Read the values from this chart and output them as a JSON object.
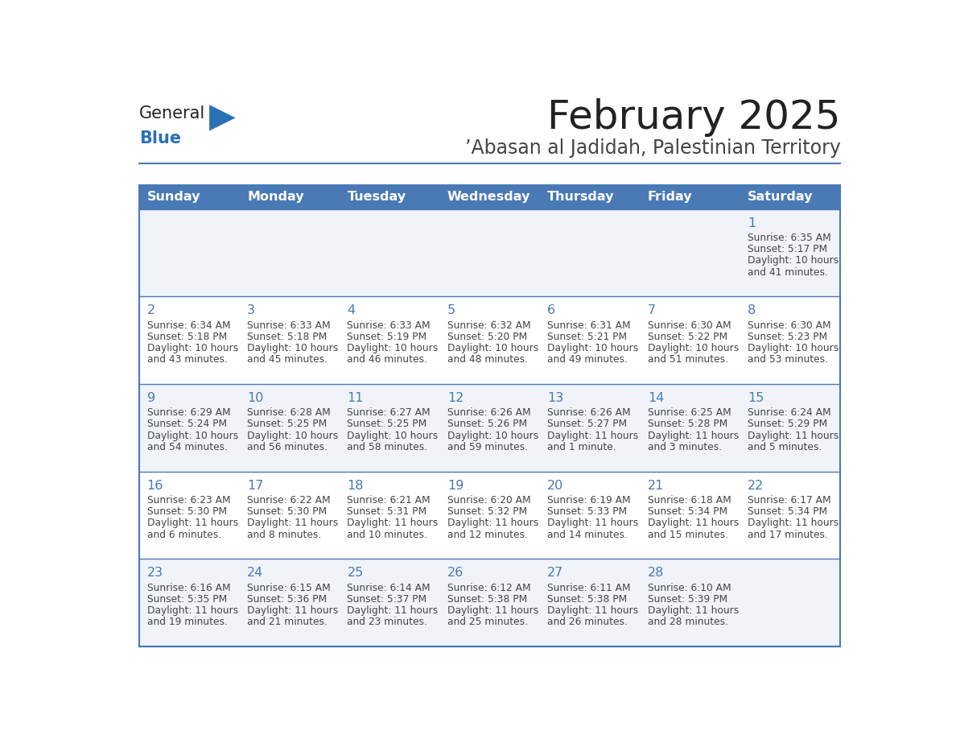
{
  "title": "February 2025",
  "subtitle": "’Abasan al Jadidah, Palestinian Territory",
  "days_of_week": [
    "Sunday",
    "Monday",
    "Tuesday",
    "Wednesday",
    "Thursday",
    "Friday",
    "Saturday"
  ],
  "header_bg": "#4a7ab5",
  "header_text": "#ffffff",
  "cell_bg_odd": "#f0f4f8",
  "cell_bg_even": "#ffffff",
  "border_color": "#4a7ab5",
  "day_number_color": "#4a7ab5",
  "text_color": "#444444",
  "title_color": "#222222",
  "subtitle_color": "#444444",
  "logo_general_color": "#222222",
  "logo_blue_color": "#2a72b5",
  "calendar_data": [
    [
      null,
      null,
      null,
      null,
      null,
      null,
      {
        "day": 1,
        "sunrise": "6:35 AM",
        "sunset": "5:17 PM",
        "daylight": "10 hours and 41 minutes."
      }
    ],
    [
      {
        "day": 2,
        "sunrise": "6:34 AM",
        "sunset": "5:18 PM",
        "daylight": "10 hours and 43 minutes."
      },
      {
        "day": 3,
        "sunrise": "6:33 AM",
        "sunset": "5:18 PM",
        "daylight": "10 hours and 45 minutes."
      },
      {
        "day": 4,
        "sunrise": "6:33 AM",
        "sunset": "5:19 PM",
        "daylight": "10 hours and 46 minutes."
      },
      {
        "day": 5,
        "sunrise": "6:32 AM",
        "sunset": "5:20 PM",
        "daylight": "10 hours and 48 minutes."
      },
      {
        "day": 6,
        "sunrise": "6:31 AM",
        "sunset": "5:21 PM",
        "daylight": "10 hours and 49 minutes."
      },
      {
        "day": 7,
        "sunrise": "6:30 AM",
        "sunset": "5:22 PM",
        "daylight": "10 hours and 51 minutes."
      },
      {
        "day": 8,
        "sunrise": "6:30 AM",
        "sunset": "5:23 PM",
        "daylight": "10 hours and 53 minutes."
      }
    ],
    [
      {
        "day": 9,
        "sunrise": "6:29 AM",
        "sunset": "5:24 PM",
        "daylight": "10 hours and 54 minutes."
      },
      {
        "day": 10,
        "sunrise": "6:28 AM",
        "sunset": "5:25 PM",
        "daylight": "10 hours and 56 minutes."
      },
      {
        "day": 11,
        "sunrise": "6:27 AM",
        "sunset": "5:25 PM",
        "daylight": "10 hours and 58 minutes."
      },
      {
        "day": 12,
        "sunrise": "6:26 AM",
        "sunset": "5:26 PM",
        "daylight": "10 hours and 59 minutes."
      },
      {
        "day": 13,
        "sunrise": "6:26 AM",
        "sunset": "5:27 PM",
        "daylight": "11 hours and 1 minute."
      },
      {
        "day": 14,
        "sunrise": "6:25 AM",
        "sunset": "5:28 PM",
        "daylight": "11 hours and 3 minutes."
      },
      {
        "day": 15,
        "sunrise": "6:24 AM",
        "sunset": "5:29 PM",
        "daylight": "11 hours and 5 minutes."
      }
    ],
    [
      {
        "day": 16,
        "sunrise": "6:23 AM",
        "sunset": "5:30 PM",
        "daylight": "11 hours and 6 minutes."
      },
      {
        "day": 17,
        "sunrise": "6:22 AM",
        "sunset": "5:30 PM",
        "daylight": "11 hours and 8 minutes."
      },
      {
        "day": 18,
        "sunrise": "6:21 AM",
        "sunset": "5:31 PM",
        "daylight": "11 hours and 10 minutes."
      },
      {
        "day": 19,
        "sunrise": "6:20 AM",
        "sunset": "5:32 PM",
        "daylight": "11 hours and 12 minutes."
      },
      {
        "day": 20,
        "sunrise": "6:19 AM",
        "sunset": "5:33 PM",
        "daylight": "11 hours and 14 minutes."
      },
      {
        "day": 21,
        "sunrise": "6:18 AM",
        "sunset": "5:34 PM",
        "daylight": "11 hours and 15 minutes."
      },
      {
        "day": 22,
        "sunrise": "6:17 AM",
        "sunset": "5:34 PM",
        "daylight": "11 hours and 17 minutes."
      }
    ],
    [
      {
        "day": 23,
        "sunrise": "6:16 AM",
        "sunset": "5:35 PM",
        "daylight": "11 hours and 19 minutes."
      },
      {
        "day": 24,
        "sunrise": "6:15 AM",
        "sunset": "5:36 PM",
        "daylight": "11 hours and 21 minutes."
      },
      {
        "day": 25,
        "sunrise": "6:14 AM",
        "sunset": "5:37 PM",
        "daylight": "11 hours and 23 minutes."
      },
      {
        "day": 26,
        "sunrise": "6:12 AM",
        "sunset": "5:38 PM",
        "daylight": "11 hours and 25 minutes."
      },
      {
        "day": 27,
        "sunrise": "6:11 AM",
        "sunset": "5:38 PM",
        "daylight": "11 hours and 26 minutes."
      },
      {
        "day": 28,
        "sunrise": "6:10 AM",
        "sunset": "5:39 PM",
        "daylight": "11 hours and 28 minutes."
      },
      null
    ]
  ]
}
